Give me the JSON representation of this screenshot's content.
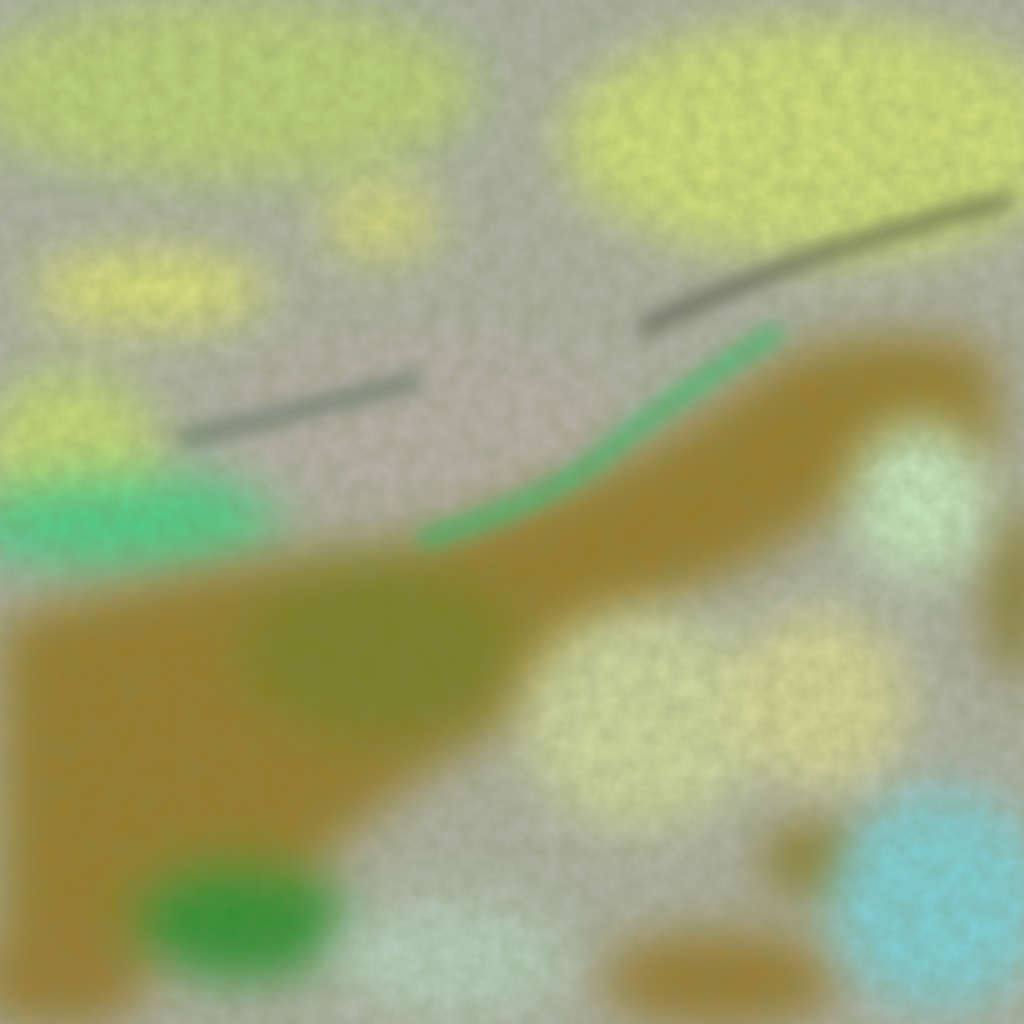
{
  "image": {
    "kind": "false-color satellite imagery",
    "colors": {
      "cloud_grey": "#b4b3a8",
      "cloud_yellow": "#d8e27a",
      "cloud_edge_green": "#3fe08a",
      "land_brown": "#9a7a28",
      "land_olive": "#7f8a2a",
      "vegetation_green": "#2f9a3a",
      "snow_cyan": "#7fd6dc",
      "ridge_dark": "#3a3020"
    }
  }
}
